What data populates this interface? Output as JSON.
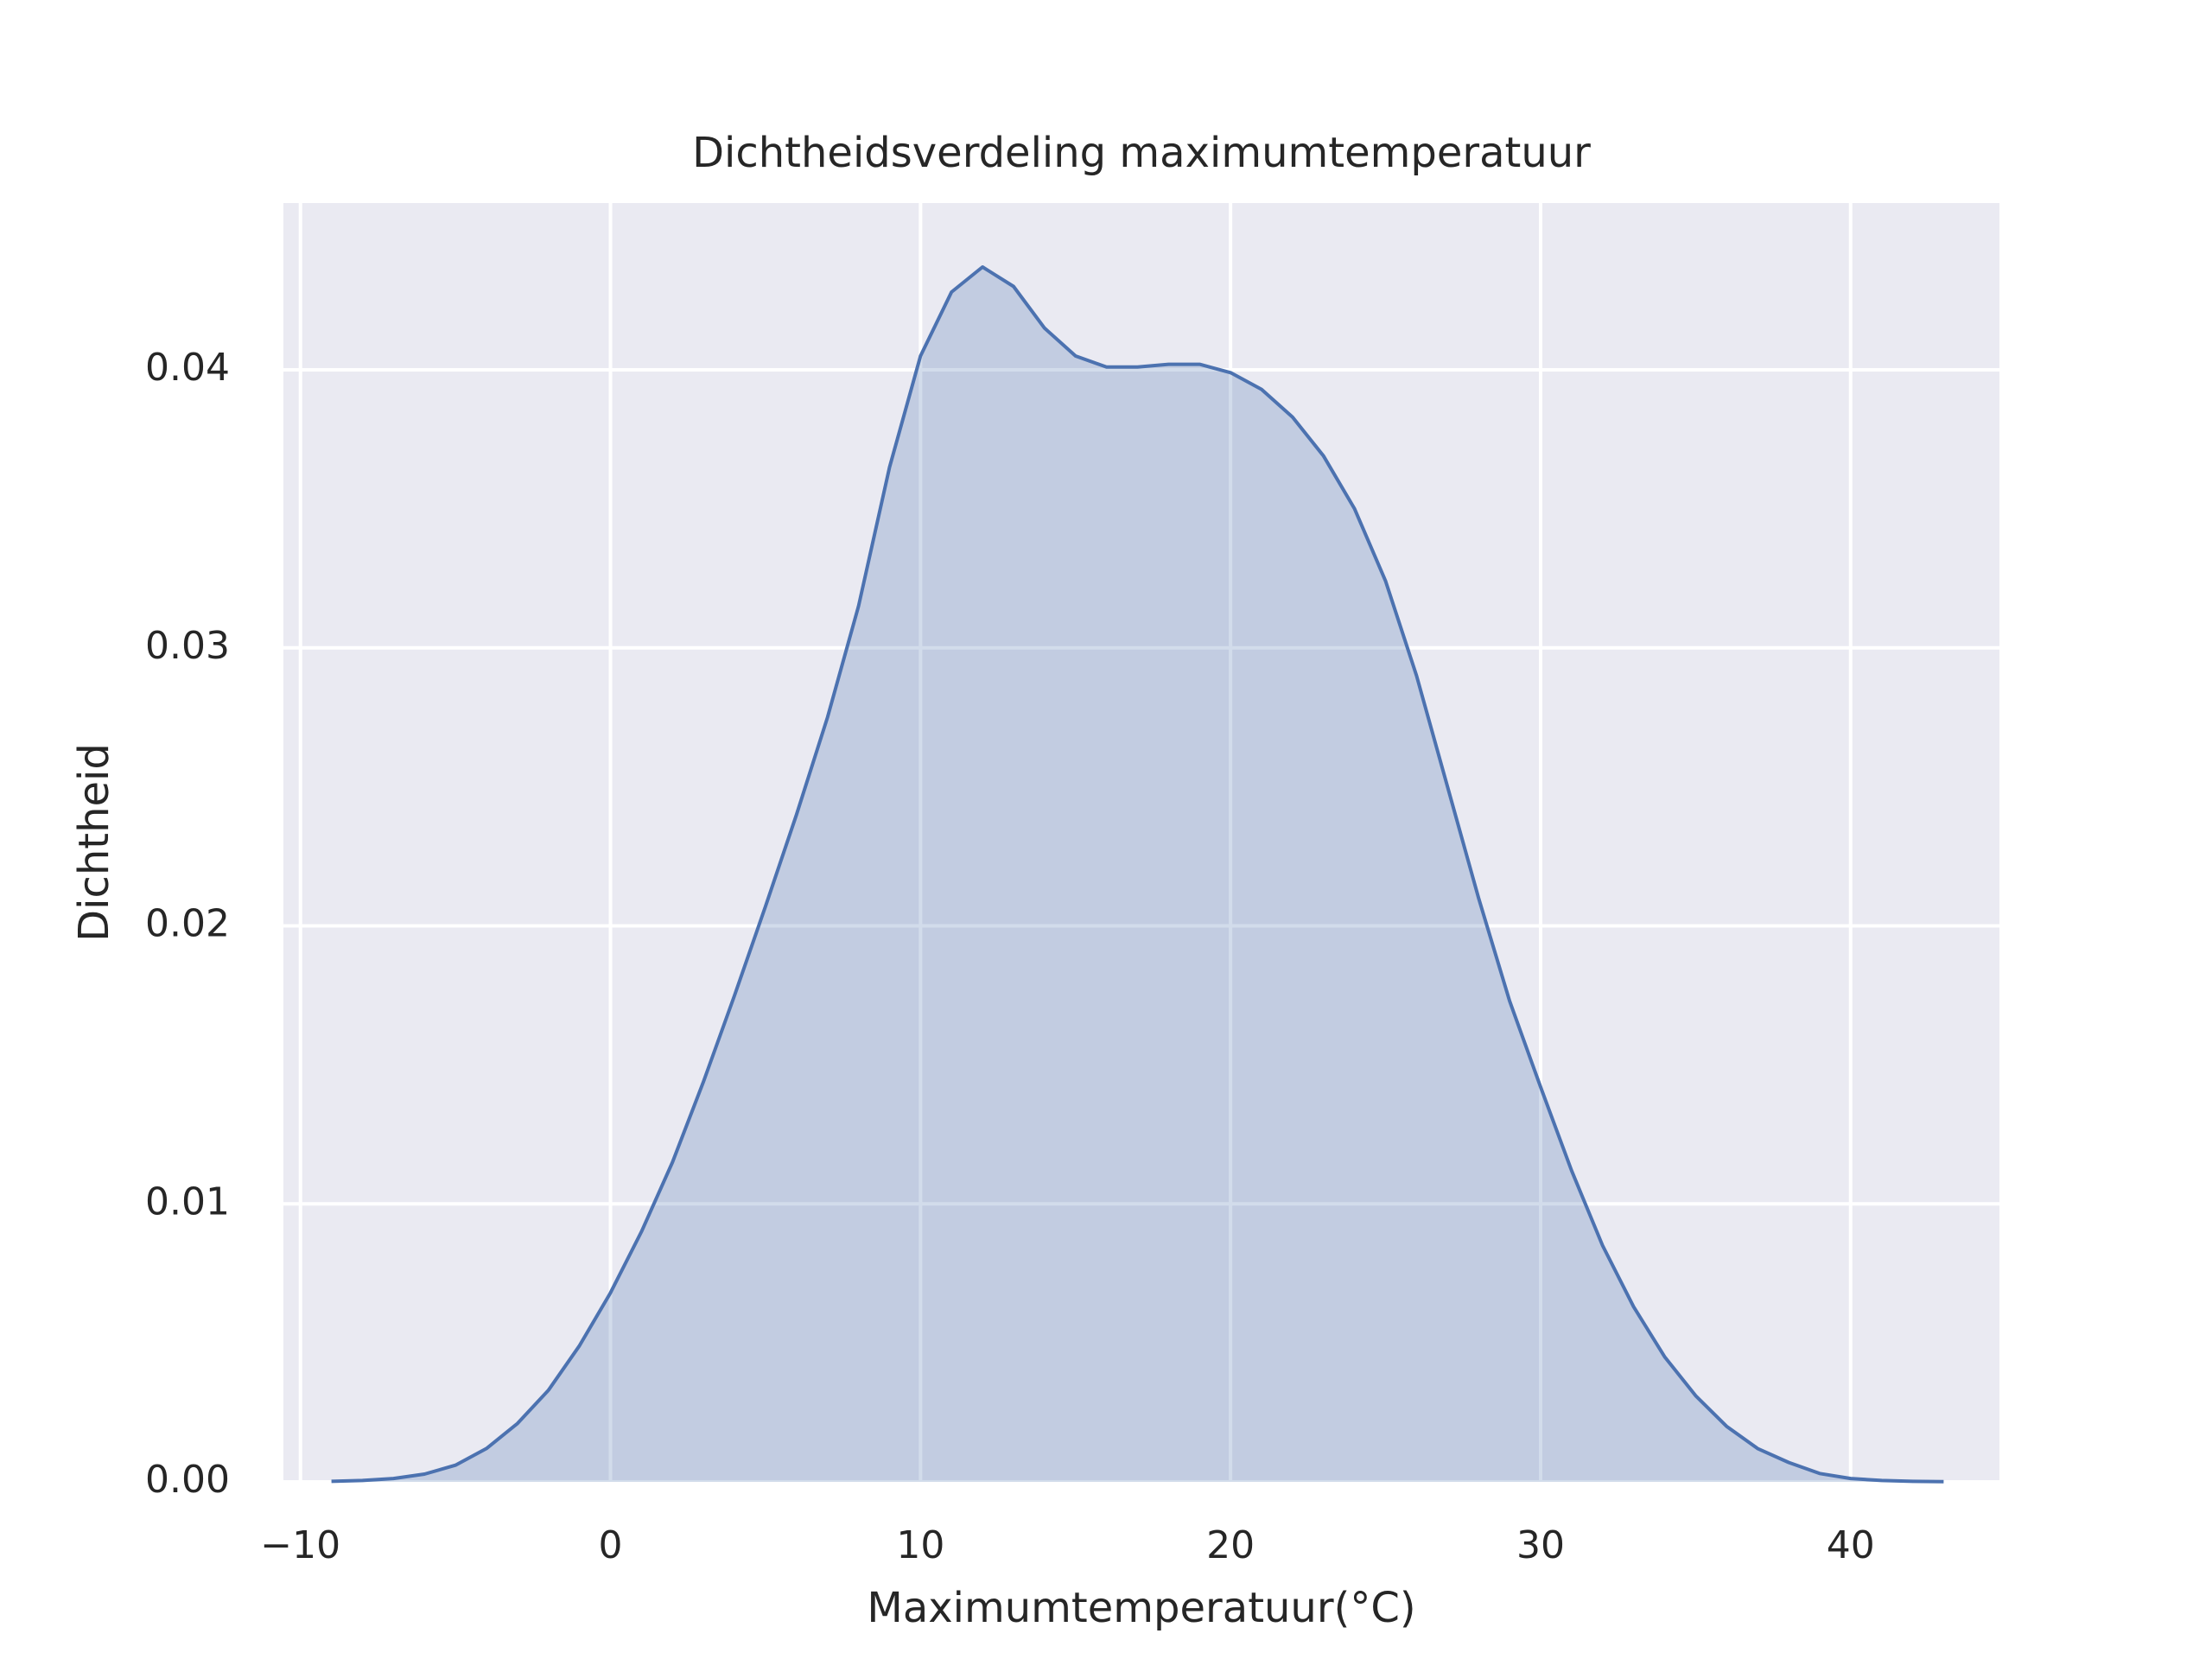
{
  "chart_data": {
    "type": "area",
    "title": "Dichtheidsverdeling maximumtemperatuur",
    "x_label": "Maximumtemperatuur(°C)",
    "y_label": "Dichtheid",
    "x": [
      -9,
      -8,
      -7,
      -6,
      -5,
      -4,
      -3,
      -2,
      -1,
      0,
      1,
      2,
      3,
      4,
      5,
      6,
      7,
      8,
      9,
      10,
      11,
      12,
      13,
      14,
      15,
      16,
      17,
      18,
      19,
      20,
      21,
      22,
      23,
      24,
      25,
      26,
      27,
      28,
      29,
      30,
      31,
      32,
      33,
      34,
      35,
      36,
      37,
      38,
      39,
      40,
      41,
      42,
      43
    ],
    "series": [
      {
        "name": "Maximumtemperatuur",
        "color": "#4c72b0",
        "values": [
          2e-05,
          5e-05,
          0.00012,
          0.00028,
          0.0006,
          0.0012,
          0.0021,
          0.0033,
          0.0049,
          0.0068,
          0.009,
          0.0115,
          0.0144,
          0.0175,
          0.0207,
          0.024,
          0.0275,
          0.0315,
          0.0365,
          0.0405,
          0.0428,
          0.0437,
          0.043,
          0.0415,
          0.0405,
          0.0401,
          0.0401,
          0.0402,
          0.0402,
          0.0399,
          0.0393,
          0.0383,
          0.0369,
          0.035,
          0.0324,
          0.029,
          0.025,
          0.021,
          0.0173,
          0.0142,
          0.0112,
          0.0085,
          0.0063,
          0.0045,
          0.0031,
          0.002,
          0.0012,
          0.0007,
          0.0003,
          0.00012,
          5e-05,
          2e-05,
          1e-05
        ]
      }
    ],
    "xlim": [
      -10.55,
      44.8
    ],
    "ylim": [
      0,
      0.046
    ],
    "xticks": [
      {
        "value": -10,
        "label": "−10"
      },
      0,
      10,
      20,
      30,
      40
    ],
    "yticks": [
      {
        "value": 0,
        "label": "0.00"
      },
      0.01,
      0.02,
      0.03,
      0.04
    ],
    "grid": true
  }
}
